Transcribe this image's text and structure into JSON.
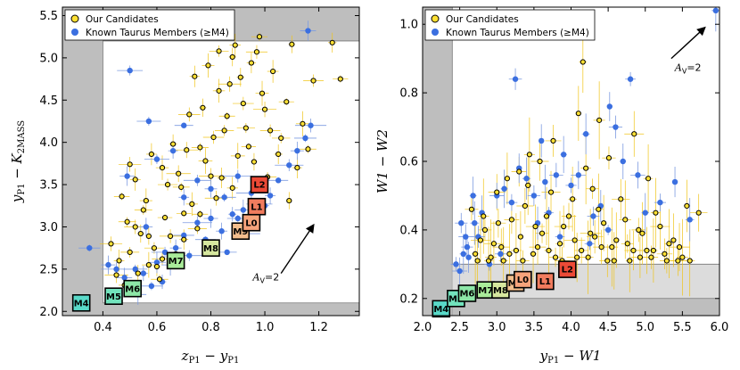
{
  "colors": {
    "candidate_fill": "#FFE033",
    "candidate_edge": "#000000",
    "candidate_err": "#F0C419",
    "member_fill": "#3B6FE0",
    "member_err": "#7D9BE0",
    "excluded_region": "#BEBEBE",
    "band_region": "#DCDCDC"
  },
  "chart_data": [
    {
      "type": "scatter",
      "panel": "left",
      "xlabel": "z_P1 − y_P1",
      "ylabel": "y_P1 − K_2MASS",
      "xlim": [
        0.25,
        1.35
      ],
      "ylim": [
        1.95,
        5.6
      ],
      "xticks": [
        0.4,
        0.6,
        0.8,
        1.0,
        1.2
      ],
      "xtick_labels": [
        "0.4",
        "0.6",
        "0.8",
        "1.0",
        "1.2"
      ],
      "yticks": [
        2.0,
        2.5,
        3.0,
        3.5,
        4.0,
        4.5,
        5.0,
        5.5
      ],
      "ytick_labels": [
        "2.0",
        "2.5",
        "3.0",
        "3.5",
        "4.0",
        "4.5",
        "5.0",
        "5.5"
      ],
      "legend": {
        "location": "upper-left",
        "entries": [
          "Our Candidates",
          "Known Taurus Members (≥M4)"
        ]
      },
      "excluded_region": {
        "x_min": 0.4,
        "y_min": 2.1,
        "y_max": 5.2
      },
      "reddening_arrow": {
        "label": "A_V=2",
        "x0": 1.06,
        "y0": 2.45,
        "x1": 1.18,
        "y1": 3.02
      },
      "spectral_sequence": [
        {
          "label": "M4",
          "x": 0.32,
          "y": 2.1,
          "color": "#59D9C8"
        },
        {
          "label": "M5",
          "x": 0.44,
          "y": 2.18,
          "color": "#72E3BD"
        },
        {
          "label": "M6",
          "x": 0.51,
          "y": 2.27,
          "color": "#8DE6A7"
        },
        {
          "label": "M7",
          "x": 0.67,
          "y": 2.6,
          "color": "#A9EC9A"
        },
        {
          "label": "M8",
          "x": 0.8,
          "y": 2.75,
          "color": "#D6E79E"
        },
        {
          "label": "M9",
          "x": 0.91,
          "y": 2.95,
          "color": "#F3BE8D"
        },
        {
          "label": "L0",
          "x": 0.95,
          "y": 3.05,
          "color": "#F6A37B"
        },
        {
          "label": "L1",
          "x": 0.97,
          "y": 3.24,
          "color": "#F17C5E"
        },
        {
          "label": "L2",
          "x": 0.98,
          "y": 3.5,
          "color": "#EC4A36"
        }
      ],
      "candidates": [
        [
          0.47,
          3.36
        ],
        [
          0.5,
          3.74
        ],
        [
          0.52,
          3.56
        ],
        [
          0.55,
          3.2
        ],
        [
          0.57,
          2.89
        ],
        [
          0.62,
          3.7
        ],
        [
          0.64,
          3.5
        ],
        [
          0.66,
          3.98
        ],
        [
          0.7,
          3.16
        ],
        [
          0.72,
          4.33
        ],
        [
          0.74,
          4.78
        ],
        [
          0.76,
          3.94
        ],
        [
          0.8,
          3.6
        ],
        [
          0.83,
          4.61
        ],
        [
          0.85,
          4.14
        ],
        [
          0.88,
          5.01
        ],
        [
          0.9,
          3.84
        ],
        [
          0.92,
          4.46
        ],
        [
          0.95,
          4.94
        ],
        [
          0.98,
          5.25
        ],
        [
          1.0,
          4.39
        ],
        [
          1.03,
          4.84
        ],
        [
          1.06,
          4.05
        ],
        [
          1.1,
          5.16
        ],
        [
          1.14,
          4.22
        ],
        [
          1.18,
          4.73
        ],
        [
          1.25,
          5.18
        ],
        [
          1.28,
          4.75
        ],
        [
          0.43,
          2.8
        ],
        [
          0.46,
          2.6
        ],
        [
          0.49,
          3.06
        ],
        [
          0.53,
          2.45
        ],
        [
          0.56,
          3.31
        ],
        [
          0.59,
          2.75
        ],
        [
          0.6,
          2.53
        ],
        [
          0.63,
          3.11
        ],
        [
          0.65,
          2.89
        ],
        [
          0.67,
          2.68
        ],
        [
          0.69,
          3.47
        ],
        [
          0.71,
          3.91
        ],
        [
          0.73,
          3.27
        ],
        [
          0.75,
          2.98
        ],
        [
          0.77,
          4.41
        ],
        [
          0.78,
          3.78
        ],
        [
          0.81,
          4.06
        ],
        [
          0.84,
          3.58
        ],
        [
          0.86,
          4.31
        ],
        [
          0.87,
          4.69
        ],
        [
          0.89,
          5.15
        ],
        [
          0.93,
          4.17
        ],
        [
          0.96,
          3.77
        ],
        [
          0.99,
          4.58
        ],
        [
          1.02,
          4.14
        ],
        [
          1.05,
          3.86
        ],
        [
          1.08,
          4.48
        ],
        [
          0.52,
          3.0
        ],
        [
          0.58,
          3.86
        ],
        [
          0.61,
          2.38
        ],
        [
          0.68,
          3.63
        ],
        [
          0.79,
          4.91
        ],
        [
          0.83,
          5.08
        ],
        [
          0.91,
          4.77
        ],
        [
          0.94,
          3.95
        ],
        [
          0.97,
          5.07
        ],
        [
          1.12,
          3.7
        ],
        [
          1.16,
          3.92
        ],
        [
          0.45,
          2.43
        ],
        [
          0.48,
          2.31
        ],
        [
          0.5,
          2.7
        ],
        [
          0.54,
          2.92
        ],
        [
          0.57,
          2.55
        ],
        [
          0.62,
          2.62
        ],
        [
          0.7,
          2.85
        ],
        [
          0.76,
          3.15
        ],
        [
          0.82,
          3.34
        ],
        [
          0.88,
          3.46
        ],
        [
          1.01,
          3.59
        ],
        [
          1.09,
          3.31
        ]
      ],
      "members": [
        [
          0.35,
          2.75
        ],
        [
          0.45,
          2.5
        ],
        [
          0.48,
          2.4
        ],
        [
          0.52,
          2.5
        ],
        [
          0.55,
          2.45
        ],
        [
          0.6,
          2.58
        ],
        [
          0.63,
          2.7
        ],
        [
          0.67,
          2.75
        ],
        [
          0.7,
          2.9
        ],
        [
          0.75,
          3.05
        ],
        [
          0.8,
          3.1
        ],
        [
          0.85,
          3.35
        ],
        [
          0.88,
          3.15
        ],
        [
          0.92,
          3.2
        ],
        [
          0.98,
          3.27
        ],
        [
          1.02,
          3.37
        ],
        [
          1.05,
          3.55
        ],
        [
          1.09,
          3.73
        ],
        [
          1.12,
          3.9
        ],
        [
          1.15,
          4.05
        ],
        [
          1.17,
          4.2
        ],
        [
          1.16,
          5.32
        ],
        [
          0.6,
          3.8
        ],
        [
          0.66,
          3.9
        ],
        [
          0.7,
          4.2
        ],
        [
          0.75,
          3.55
        ],
        [
          0.8,
          3.45
        ],
        [
          0.9,
          3.1
        ],
        [
          0.95,
          3.4
        ],
        [
          0.49,
          3.6
        ],
        [
          0.57,
          4.25
        ],
        [
          1.0,
          3.25
        ],
        [
          0.65,
          2.55
        ],
        [
          0.72,
          2.66
        ],
        [
          0.84,
          2.95
        ],
        [
          0.78,
          2.85
        ],
        [
          0.9,
          3.6
        ],
        [
          0.42,
          2.55
        ],
        [
          0.58,
          2.3
        ],
        [
          0.62,
          2.35
        ],
        [
          0.53,
          2.2
        ],
        [
          0.5,
          4.85
        ],
        [
          0.7,
          3.35
        ],
        [
          0.86,
          2.7
        ],
        [
          0.93,
          2.92
        ],
        [
          0.56,
          3.0
        ]
      ]
    },
    {
      "type": "scatter",
      "panel": "right",
      "xlabel": "y_P1 − W1",
      "ylabel": "W1 − W2",
      "xlim": [
        2.0,
        6.0
      ],
      "ylim": [
        0.15,
        1.05
      ],
      "xticks": [
        2.0,
        2.5,
        3.0,
        3.5,
        4.0,
        4.5,
        5.0,
        5.5,
        6.0
      ],
      "xtick_labels": [
        "2.0",
        "2.5",
        "3.0",
        "3.5",
        "4.0",
        "4.5",
        "5.0",
        "5.5",
        "6.0"
      ],
      "yticks": [
        0.2,
        0.4,
        0.6,
        0.8,
        1.0
      ],
      "ytick_labels": [
        "0.2",
        "0.4",
        "0.6",
        "0.8",
        "1.0"
      ],
      "legend": {
        "location": "upper-left",
        "entries": [
          "Our Candidates",
          "Known Taurus Members (≥M4)"
        ]
      },
      "excluded_region": {
        "x_max": 2.4
      },
      "band_region": {
        "x_min": 2.4,
        "y_min": 0.2,
        "y_max": 0.3
      },
      "reddening_arrow": {
        "label": "A_V=2",
        "x0": 5.35,
        "y0": 0.9,
        "x1": 5.8,
        "y1": 0.99
      },
      "spectral_sequence": [
        {
          "label": "M4",
          "x": 2.25,
          "y": 0.17,
          "color": "#59D9C8"
        },
        {
          "label": "M5",
          "x": 2.45,
          "y": 0.2,
          "color": "#72E3BD"
        },
        {
          "label": "M6",
          "x": 2.6,
          "y": 0.215,
          "color": "#8DE6A7"
        },
        {
          "label": "M7",
          "x": 2.85,
          "y": 0.225,
          "color": "#A9EC9A"
        },
        {
          "label": "M8",
          "x": 3.05,
          "y": 0.225,
          "color": "#D6E79E"
        },
        {
          "label": "M9",
          "x": 3.25,
          "y": 0.245,
          "color": "#F3BE8D"
        },
        {
          "label": "L0",
          "x": 3.35,
          "y": 0.255,
          "color": "#F6A37B"
        },
        {
          "label": "L1",
          "x": 3.65,
          "y": 0.25,
          "color": "#F17C5E"
        },
        {
          "label": "L2",
          "x": 3.95,
          "y": 0.285,
          "color": "#EC4A36"
        }
      ],
      "candidates": [
        [
          2.66,
          0.46
        ],
        [
          2.78,
          0.37
        ],
        [
          2.89,
          0.31
        ],
        [
          3.02,
          0.42
        ],
        [
          3.14,
          0.55
        ],
        [
          3.26,
          0.34
        ],
        [
          3.38,
          0.47
        ],
        [
          3.49,
          0.33
        ],
        [
          3.61,
          0.39
        ],
        [
          3.73,
          0.51
        ],
        [
          3.85,
          0.36
        ],
        [
          3.97,
          0.44
        ],
        [
          4.08,
          0.32
        ],
        [
          4.2,
          0.58
        ],
        [
          4.32,
          0.38
        ],
        [
          4.44,
          0.42
        ],
        [
          4.55,
          0.35
        ],
        [
          4.67,
          0.49
        ],
        [
          4.79,
          0.31
        ],
        [
          4.91,
          0.4
        ],
        [
          5.02,
          0.34
        ],
        [
          5.14,
          0.45
        ],
        [
          5.26,
          0.33
        ],
        [
          5.38,
          0.37
        ],
        [
          5.5,
          0.32
        ],
        [
          5.72,
          0.45
        ],
        [
          2.71,
          0.33
        ],
        [
          2.84,
          0.4
        ],
        [
          2.96,
          0.36
        ],
        [
          3.09,
          0.31
        ],
        [
          3.2,
          0.43
        ],
        [
          3.32,
          0.38
        ],
        [
          3.44,
          0.62
        ],
        [
          3.55,
          0.35
        ],
        [
          3.67,
          0.44
        ],
        [
          3.79,
          0.32
        ],
        [
          3.9,
          0.41
        ],
        [
          4.02,
          0.49
        ],
        [
          4.14,
          0.34
        ],
        [
          4.26,
          0.39
        ],
        [
          4.37,
          0.46
        ],
        [
          4.49,
          0.31
        ],
        [
          4.61,
          0.37
        ],
        [
          4.73,
          0.43
        ],
        [
          4.84,
          0.34
        ],
        [
          4.96,
          0.39
        ],
        [
          5.08,
          0.32
        ],
        [
          5.2,
          0.41
        ],
        [
          5.32,
          0.36
        ],
        [
          5.44,
          0.31
        ],
        [
          2.74,
          0.31
        ],
        [
          2.92,
          0.32
        ],
        [
          3.06,
          0.35
        ],
        [
          3.17,
          0.33
        ],
        [
          3.35,
          0.31
        ],
        [
          3.52,
          0.41
        ],
        [
          3.7,
          0.34
        ],
        [
          3.88,
          0.31
        ],
        [
          4.05,
          0.37
        ],
        [
          4.23,
          0.32
        ],
        [
          4.41,
          0.35
        ],
        [
          4.58,
          0.31
        ],
        [
          4.76,
          0.36
        ],
        [
          4.93,
          0.32
        ],
        [
          5.11,
          0.34
        ],
        [
          5.29,
          0.31
        ],
        [
          5.46,
          0.35
        ],
        [
          5.6,
          0.31
        ],
        [
          3.76,
          0.66
        ],
        [
          4.1,
          0.74
        ],
        [
          4.38,
          0.72
        ],
        [
          3.58,
          0.6
        ],
        [
          4.16,
          0.89
        ],
        [
          4.51,
          0.61
        ],
        [
          4.85,
          0.68
        ],
        [
          5.04,
          0.55
        ],
        [
          3.3,
          0.57
        ],
        [
          5.56,
          0.47
        ],
        [
          2.82,
          0.44
        ],
        [
          3.0,
          0.51
        ],
        [
          3.42,
          0.53
        ],
        [
          4.29,
          0.52
        ]
      ],
      "members": [
        [
          2.45,
          0.3
        ],
        [
          2.5,
          0.28
        ],
        [
          2.55,
          0.33
        ],
        [
          2.6,
          0.35
        ],
        [
          2.62,
          0.32
        ],
        [
          2.7,
          0.42
        ],
        [
          2.75,
          0.38
        ],
        [
          2.8,
          0.45
        ],
        [
          2.9,
          0.3
        ],
        [
          3.0,
          0.5
        ],
        [
          3.1,
          0.52
        ],
        [
          3.2,
          0.48
        ],
        [
          3.3,
          0.58
        ],
        [
          3.4,
          0.55
        ],
        [
          3.5,
          0.5
        ],
        [
          3.6,
          0.66
        ],
        [
          3.7,
          0.45
        ],
        [
          3.8,
          0.56
        ],
        [
          3.9,
          0.62
        ],
        [
          4.0,
          0.53
        ],
        [
          4.1,
          0.56
        ],
        [
          4.2,
          0.68
        ],
        [
          4.3,
          0.44
        ],
        [
          4.4,
          0.47
        ],
        [
          4.5,
          0.4
        ],
        [
          4.6,
          0.7
        ],
        [
          4.7,
          0.6
        ],
        [
          4.8,
          0.84
        ],
        [
          4.9,
          0.56
        ],
        [
          5.0,
          0.45
        ],
        [
          5.2,
          0.48
        ],
        [
          5.4,
          0.54
        ],
        [
          5.6,
          0.43
        ],
        [
          3.25,
          0.84
        ],
        [
          3.65,
          0.54
        ],
        [
          4.25,
          0.36
        ],
        [
          2.58,
          0.38
        ],
        [
          2.68,
          0.5
        ],
        [
          3.05,
          0.33
        ],
        [
          4.52,
          0.76
        ],
        [
          5.95,
          1.04
        ],
        [
          2.52,
          0.42
        ],
        [
          3.55,
          0.42
        ],
        [
          3.85,
          0.38
        ]
      ]
    }
  ]
}
